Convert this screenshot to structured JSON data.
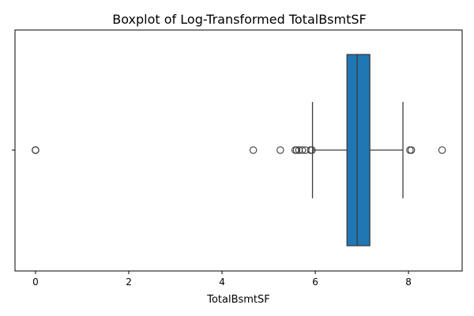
{
  "chart_data": {
    "type": "boxplot",
    "title": "Boxplot of Log-Transformed TotalBsmtSF",
    "xlabel": "TotalBsmtSF",
    "ylabel": "",
    "xlim": [
      -0.44,
      9.15
    ],
    "xticks": [
      0,
      2,
      4,
      6,
      8
    ],
    "xtick_labels": [
      "0",
      "2",
      "4",
      "6",
      "8"
    ],
    "orientation": "horizontal",
    "grid": false,
    "box": {
      "whisker_low": 5.94,
      "q1": 6.68,
      "median": 6.9,
      "q3": 7.17,
      "whisker_high": 7.88,
      "fill_color": "#1f77b4",
      "edge_color": "#3d3d3d"
    },
    "outliers": [
      0,
      0,
      0,
      4.67,
      5.25,
      5.57,
      5.6,
      5.65,
      5.72,
      5.79,
      5.9,
      5.93,
      8.03,
      8.06,
      8.72
    ]
  }
}
